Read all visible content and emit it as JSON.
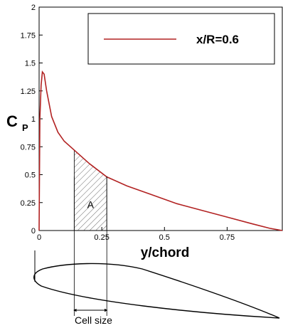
{
  "chart_data": {
    "type": "line",
    "title": "",
    "xlabel": "y/chord",
    "ylabel": {
      "main": "C",
      "sub": "P"
    },
    "xlim": [
      0,
      0.97
    ],
    "ylim": [
      0,
      2
    ],
    "xticks": [
      0,
      0.25,
      0.5,
      0.75
    ],
    "xtick_labels": [
      "0",
      "0.25",
      "0.5",
      "0.75"
    ],
    "yticks": [
      0,
      0.25,
      0.5,
      0.75,
      1,
      1.25,
      1.5,
      1.75,
      2
    ],
    "ytick_labels": [
      "0",
      "0.25",
      "0.5",
      "0.75",
      "1",
      "1.25",
      "1.5",
      "1.75",
      "2"
    ],
    "grid": false,
    "legend_position": "top-right",
    "series": [
      {
        "name": "x/R=0.6",
        "color": "#b22222",
        "x": [
          0,
          0.003,
          0.008,
          0.013,
          0.02,
          0.03,
          0.05,
          0.075,
          0.1,
          0.14,
          0.2,
          0.27,
          0.35,
          0.45,
          0.55,
          0.65,
          0.75,
          0.85,
          0.92,
          0.97
        ],
        "y": [
          0,
          1.0,
          1.3,
          1.42,
          1.4,
          1.25,
          1.02,
          0.88,
          0.8,
          0.72,
          0.6,
          0.48,
          0.4,
          0.32,
          0.24,
          0.18,
          0.12,
          0.06,
          0.02,
          0
        ]
      }
    ],
    "shaded_region": {
      "x_start": 0.14,
      "x_end": 0.27,
      "label": "A"
    },
    "annotation": {
      "label": "Cell size"
    }
  }
}
